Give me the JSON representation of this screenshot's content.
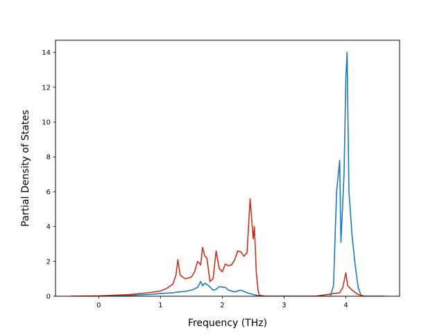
{
  "chart_data": {
    "type": "line",
    "title": "",
    "xlabel": "Frequency (THz)",
    "ylabel": "Partial Density of States",
    "xlim": [
      -0.7,
      4.87
    ],
    "ylim": [
      0,
      14.7
    ],
    "xticks": [
      0,
      1,
      2,
      3,
      4
    ],
    "yticks": [
      0,
      2,
      4,
      6,
      8,
      10,
      12,
      14
    ],
    "grid": false,
    "legend": "none",
    "series": [
      {
        "color": "#1f77b4",
        "x": [
          -0.45,
          0.0,
          0.5,
          0.8,
          1.0,
          1.2,
          1.3,
          1.4,
          1.5,
          1.6,
          1.65,
          1.68,
          1.72,
          1.78,
          1.85,
          1.9,
          1.95,
          2.05,
          2.1,
          2.2,
          2.3,
          2.4,
          2.5,
          2.55,
          2.6,
          2.7,
          3.0,
          3.5,
          3.75,
          3.8,
          3.85,
          3.9,
          3.92,
          3.97,
          4.0,
          4.02,
          4.05,
          4.1,
          4.15,
          4.2,
          4.25,
          4.4,
          4.63
        ],
        "y": [
          0.0,
          0.01,
          0.05,
          0.1,
          0.15,
          0.2,
          0.25,
          0.28,
          0.35,
          0.5,
          0.85,
          0.6,
          0.75,
          0.6,
          0.35,
          0.4,
          0.55,
          0.5,
          0.35,
          0.25,
          0.35,
          0.2,
          0.1,
          0.05,
          0.01,
          0.0,
          0.0,
          0.0,
          0.0,
          0.6,
          6.0,
          7.8,
          3.1,
          7.0,
          12.5,
          14.0,
          6.0,
          3.5,
          1.8,
          0.5,
          0.0,
          0.0,
          0.0
        ]
      },
      {
        "color": "#c0311d",
        "x": [
          -0.45,
          0.0,
          0.5,
          0.8,
          1.0,
          1.1,
          1.2,
          1.25,
          1.28,
          1.32,
          1.4,
          1.5,
          1.55,
          1.6,
          1.65,
          1.68,
          1.72,
          1.75,
          1.8,
          1.85,
          1.9,
          1.95,
          2.0,
          2.05,
          2.1,
          2.15,
          2.2,
          2.25,
          2.3,
          2.35,
          2.4,
          2.45,
          2.5,
          2.52,
          2.55,
          2.58,
          2.6,
          2.7,
          3.0,
          3.5,
          3.8,
          3.9,
          3.95,
          4.0,
          4.03,
          4.1,
          4.2,
          4.3,
          4.63
        ],
        "y": [
          0.0,
          0.02,
          0.1,
          0.2,
          0.3,
          0.45,
          0.7,
          1.2,
          2.1,
          1.2,
          1.0,
          1.1,
          1.4,
          2.0,
          1.8,
          2.8,
          2.3,
          2.2,
          0.85,
          1.0,
          2.6,
          1.6,
          1.4,
          1.85,
          1.75,
          1.8,
          2.1,
          2.6,
          2.55,
          2.3,
          2.5,
          5.6,
          3.3,
          4.0,
          1.4,
          0.3,
          0.05,
          0.0,
          0.0,
          0.0,
          0.15,
          0.2,
          0.5,
          1.35,
          0.6,
          0.35,
          0.1,
          0.0,
          0.0
        ]
      }
    ]
  }
}
